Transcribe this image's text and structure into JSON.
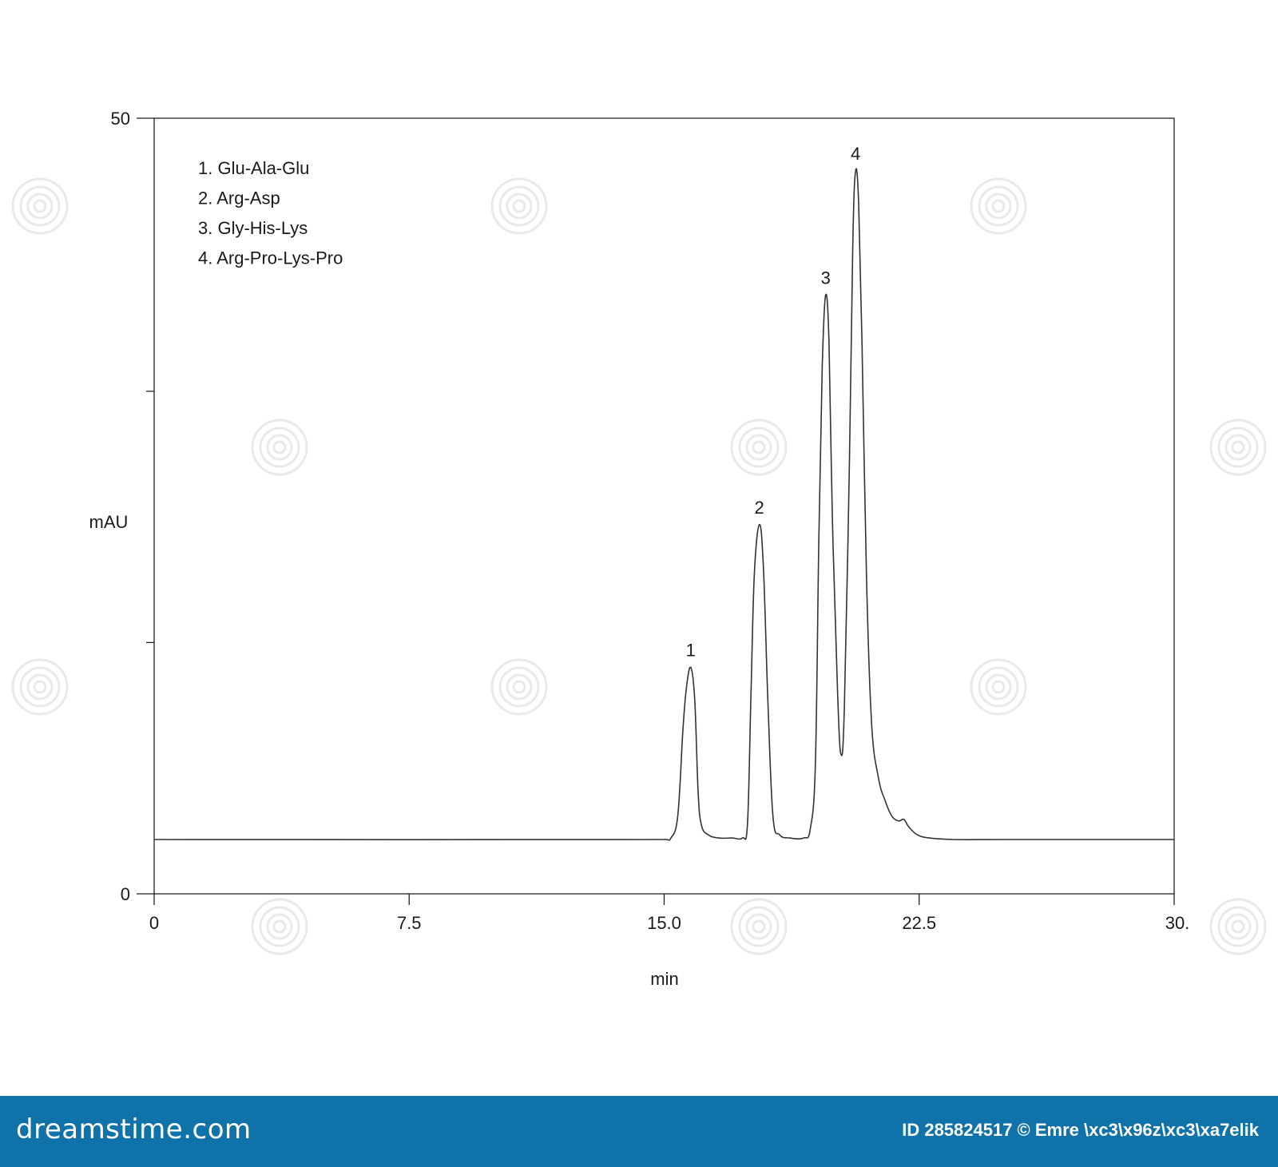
{
  "chart_data": {
    "type": "line",
    "title": "",
    "xlabel": "min",
    "ylabel": "mAU",
    "xlim": [
      0,
      30
    ],
    "ylim": [
      0,
      50
    ],
    "x_ticks": [
      "0",
      "7.5",
      "15.0",
      "22.5",
      "30."
    ],
    "y_ticks": [
      "50",
      "0"
    ],
    "y_minor_ticks_values": [
      32.4,
      16.2
    ],
    "grid": false,
    "legend_placement": "top-left",
    "legend_entries": [
      "1. Glu-Ala-Glu",
      "2. Arg-Asp",
      "3. Gly-His-Lys",
      "4. Arg-Pro-Lys-Pro"
    ],
    "peaks": [
      {
        "label": "1",
        "x": 15.78,
        "y": 14.6
      },
      {
        "label": "2",
        "x": 17.8,
        "y": 23.8
      },
      {
        "label": "3",
        "x": 19.75,
        "y": 38.6
      },
      {
        "label": "4",
        "x": 20.63,
        "y": 46.6
      }
    ],
    "series": [
      {
        "color": "#333333",
        "x": [
          0,
          15.0,
          15.2,
          15.4,
          15.55,
          15.65,
          15.78,
          15.9,
          16.0,
          16.1,
          16.3,
          16.6,
          17.0,
          17.3,
          17.45,
          17.55,
          17.65,
          17.8,
          17.92,
          18.05,
          18.2,
          18.4,
          18.7,
          19.1,
          19.3,
          19.45,
          19.55,
          19.65,
          19.75,
          19.85,
          19.95,
          20.1,
          20.2,
          20.3,
          20.45,
          20.55,
          20.63,
          20.72,
          20.82,
          20.95,
          21.1,
          21.3,
          21.5,
          21.7,
          21.9,
          22.05,
          22.2,
          22.45,
          22.8,
          23.5,
          25,
          28,
          30
        ],
        "y": [
          3.5,
          3.5,
          3.6,
          5.0,
          10.5,
          13.2,
          14.6,
          12.5,
          6.5,
          4.4,
          3.8,
          3.6,
          3.6,
          3.6,
          4.5,
          12.5,
          20.5,
          23.8,
          21.0,
          12.5,
          5.0,
          3.8,
          3.6,
          3.6,
          4.2,
          8.5,
          23.0,
          34.0,
          38.6,
          35.5,
          24.0,
          13.0,
          9.0,
          12.0,
          28.0,
          42.0,
          46.6,
          44.5,
          35.5,
          20.5,
          11.0,
          7.5,
          6.0,
          5.0,
          4.7,
          4.8,
          4.3,
          3.8,
          3.6,
          3.5,
          3.5,
          3.5,
          3.5
        ]
      }
    ]
  },
  "footer": {
    "brand": "dreamstime.com",
    "credit": "ID 285824517 © Emre \\xc3\\x96z\\xc3\\xa7elik"
  }
}
